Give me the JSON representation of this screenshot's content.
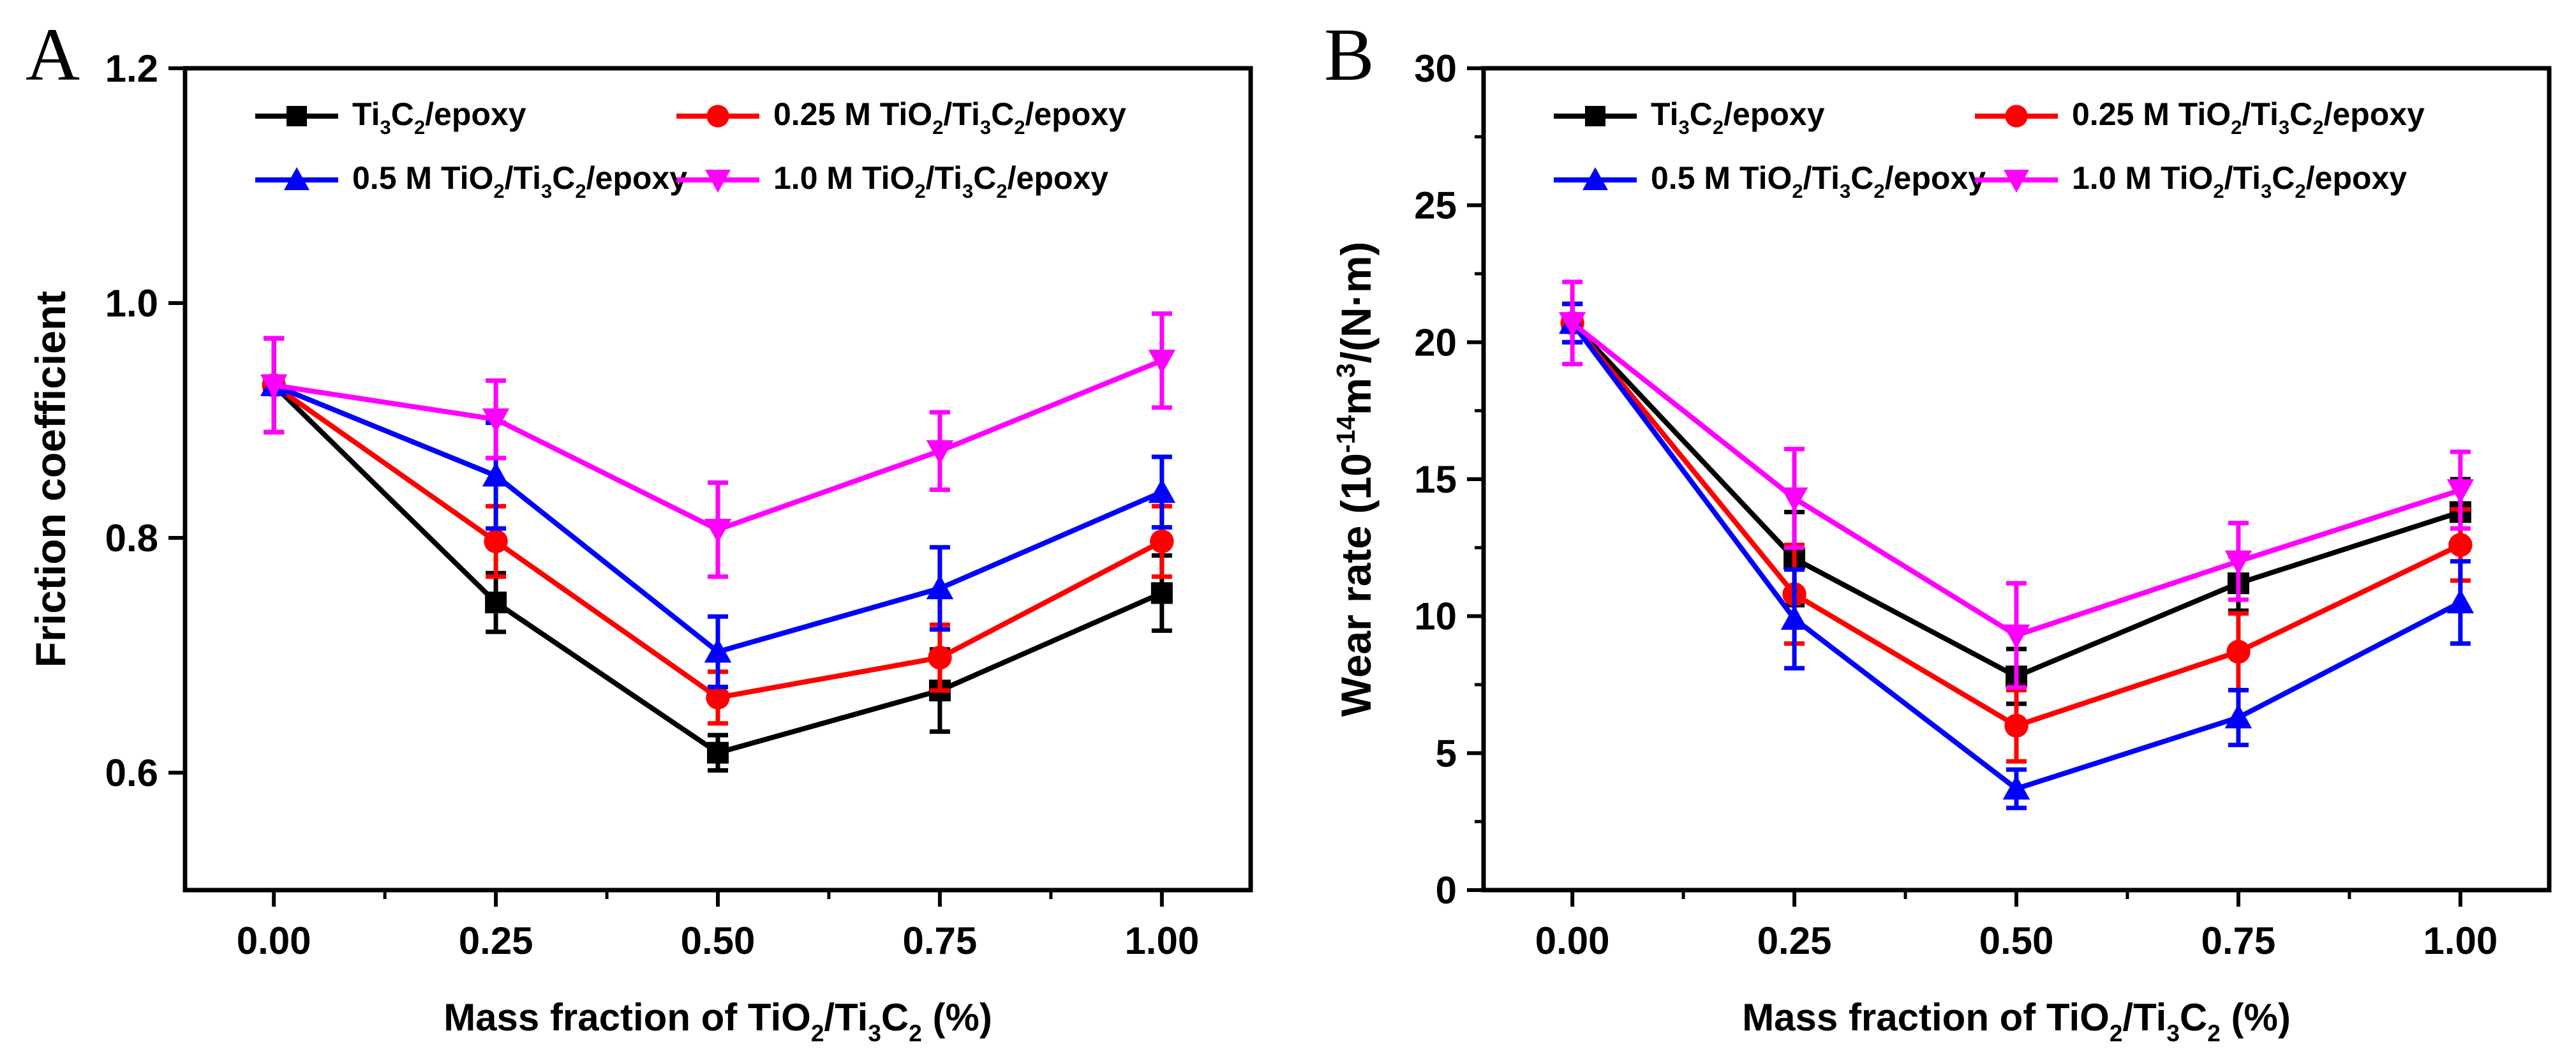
{
  "chart_data": [
    {
      "type": "line",
      "panel_label": "A",
      "title": "",
      "xlabel": "Mass fraction of TiO2/Ti3C2 (%)",
      "xlabel_parts": [
        "Mass fraction of TiO",
        "2",
        "/Ti",
        "3",
        "C",
        "2",
        " (%)"
      ],
      "ylabel": "Friction coefficient",
      "ylabel_parts": [
        "Friction coefficient"
      ],
      "xlim": [
        -0.1,
        1.1
      ],
      "ylim": [
        0.5,
        1.2
      ],
      "x": [
        0.0,
        0.25,
        0.5,
        0.75,
        1.0
      ],
      "x_tick_labels": [
        "0.00",
        "0.25",
        "0.50",
        "0.75",
        "1.00"
      ],
      "y_ticks": [
        0.6,
        0.8,
        1.0,
        1.2
      ],
      "y_tick_labels": [
        "0.6",
        "0.8",
        "1.0",
        "1.2"
      ],
      "legend_position": "top",
      "series": [
        {
          "name": "Ti3C2/epoxy",
          "label_parts": [
            "Ti",
            "3",
            "C",
            "2",
            "/epoxy"
          ],
          "color": "#000000",
          "marker": "square",
          "values": [
            0.93,
            0.745,
            0.617,
            0.67,
            0.753
          ],
          "errors": [
            0.04,
            0.025,
            0.015,
            0.035,
            0.032
          ]
        },
        {
          "name": "0.25 M TiO2/Ti3C2/epoxy",
          "label_parts": [
            "0.25 M TiO",
            "2",
            "/Ti",
            "3",
            "C",
            "2",
            "/epoxy"
          ],
          "color": "#ff0000",
          "marker": "circle",
          "values": [
            0.93,
            0.797,
            0.664,
            0.698,
            0.797
          ],
          "errors": [
            0.04,
            0.03,
            0.022,
            0.028,
            0.03
          ]
        },
        {
          "name": "0.5 M TiO2/Ti3C2/epoxy",
          "label_parts": [
            "0.5 M TiO",
            "2",
            "/Ti",
            "3",
            "C",
            "2",
            "/epoxy"
          ],
          "color": "#0000ff",
          "marker": "triangle-up",
          "values": [
            0.93,
            0.853,
            0.703,
            0.757,
            0.839
          ],
          "errors": [
            0.04,
            0.045,
            0.03,
            0.035,
            0.03
          ]
        },
        {
          "name": "1.0 M TiO2/Ti3C2/epoxy",
          "label_parts": [
            "1.0 M TiO",
            "2",
            "/Ti",
            "3",
            "C",
            "2",
            "/epoxy"
          ],
          "color": "#ff00ff",
          "marker": "triangle-down",
          "values": [
            0.93,
            0.901,
            0.807,
            0.874,
            0.951
          ],
          "errors": [
            0.04,
            0.033,
            0.04,
            0.033,
            0.04
          ]
        }
      ]
    },
    {
      "type": "line",
      "panel_label": "B",
      "title": "",
      "xlabel": "Mass fraction of TiO2/Ti3C2 (%)",
      "xlabel_parts": [
        "Mass fraction of TiO",
        "2",
        "/Ti",
        "3",
        "C",
        "2",
        " (%)"
      ],
      "ylabel": "Wear rate (10-14m3/(N·m)",
      "ylabel_parts": [
        "Wear rate (10",
        "-14",
        "m",
        "3",
        "/(N·m)"
      ],
      "xlim": [
        -0.1,
        1.1
      ],
      "ylim": [
        0,
        30
      ],
      "x": [
        0.0,
        0.25,
        0.5,
        0.75,
        1.0
      ],
      "x_tick_labels": [
        "0.00",
        "0.25",
        "0.50",
        "0.75",
        "1.00"
      ],
      "y_ticks": [
        0,
        5,
        10,
        15,
        20,
        25,
        30
      ],
      "y_tick_labels": [
        "0",
        "5",
        "10",
        "15",
        "20",
        "25",
        "30"
      ],
      "legend_position": "top",
      "series": [
        {
          "name": "Ti3C2/epoxy",
          "label_parts": [
            "Ti",
            "3",
            "C",
            "2",
            "/epoxy"
          ],
          "color": "#000000",
          "marker": "square",
          "values": [
            20.7,
            12.1,
            7.8,
            11.2,
            13.8
          ],
          "errors": [
            0.7,
            1.7,
            1.0,
            1.0,
            1.2
          ]
        },
        {
          "name": "0.25 M TiO2/Ti3C2/epoxy",
          "label_parts": [
            "0.25 M TiO",
            "2",
            "/Ti",
            "3",
            "C",
            "2",
            "/epoxy"
          ],
          "color": "#ff0000",
          "marker": "circle",
          "values": [
            20.7,
            10.8,
            6.0,
            8.7,
            12.6
          ],
          "errors": [
            0.7,
            1.8,
            1.3,
            1.4,
            1.3
          ]
        },
        {
          "name": "0.5 M TiO2/Ti3C2/epoxy",
          "label_parts": [
            "0.5 M TiO",
            "2",
            "/Ti",
            "3",
            "C",
            "2",
            "/epoxy"
          ],
          "color": "#0000ff",
          "marker": "triangle-up",
          "values": [
            20.7,
            9.9,
            3.7,
            6.3,
            10.5
          ],
          "errors": [
            0.7,
            1.8,
            0.7,
            1.0,
            1.5
          ]
        },
        {
          "name": "1.0 M TiO2/Ti3C2/epoxy",
          "label_parts": [
            "1.0 M TiO",
            "2",
            "/Ti",
            "3",
            "C",
            "2",
            "/epoxy"
          ],
          "color": "#ff00ff",
          "marker": "triangle-down",
          "values": [
            20.7,
            14.3,
            9.3,
            12.0,
            14.6
          ],
          "errors": [
            1.5,
            1.8,
            1.9,
            1.4,
            1.4
          ]
        }
      ]
    }
  ]
}
